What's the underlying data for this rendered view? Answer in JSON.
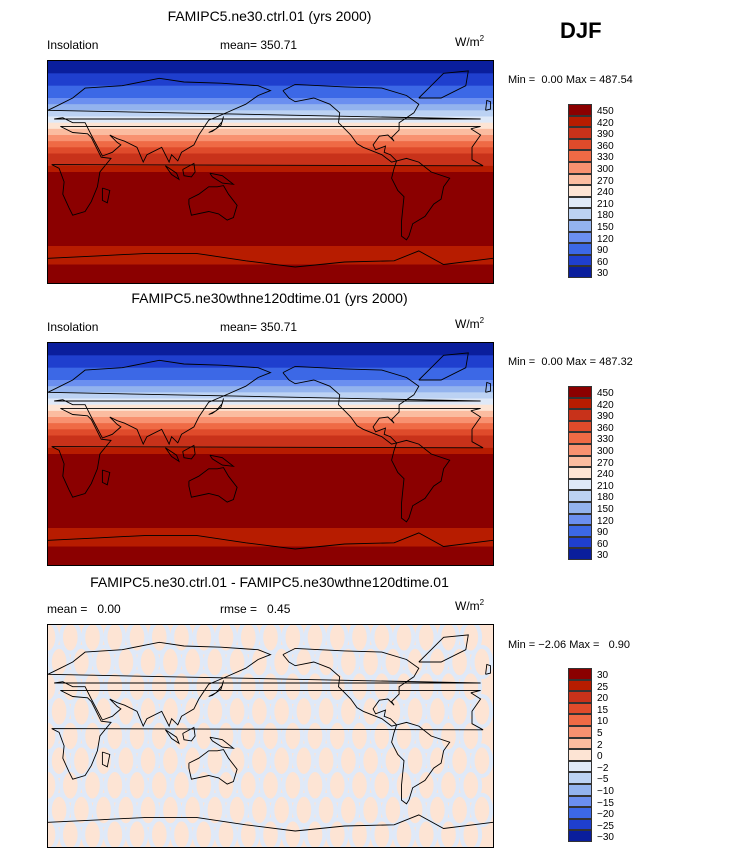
{
  "season": "DJF",
  "chart_data": [
    {
      "type": "heatmap",
      "title": "FAMIPC5.ne30.ctrl.01 (yrs 2000)",
      "variable": "Insolation",
      "mean_label": "mean=",
      "mean_value": "350.71",
      "units": "W/m",
      "units_exp": "2",
      "min_label": "Min =",
      "min_value": "0.00",
      "max_label": "Max =",
      "max_value": "487.54",
      "colorbar_levels": [
        "450",
        "420",
        "390",
        "360",
        "330",
        "300",
        "270",
        "240",
        "210",
        "180",
        "150",
        "120",
        "90",
        "60",
        "30"
      ],
      "colorbar_colors": [
        "#8b0000",
        "#b71c00",
        "#c8321a",
        "#df4b2b",
        "#ef6a45",
        "#f89170",
        "#fbbca0",
        "#fde4d4",
        "#dfe9f8",
        "#bcd2f3",
        "#93b3ee",
        "#6b8ff0",
        "#3c68e6",
        "#1f3fce",
        "#0a1e9c"
      ],
      "latitude_bands": [
        {
          "lat_range": [
            90,
            80
          ],
          "color": "#0a1e9c"
        },
        {
          "lat_range": [
            80,
            70
          ],
          "color": "#1f3fce"
        },
        {
          "lat_range": [
            70,
            60
          ],
          "color": "#3c68e6"
        },
        {
          "lat_range": [
            60,
            55
          ],
          "color": "#6b8ff0"
        },
        {
          "lat_range": [
            55,
            50
          ],
          "color": "#93b3ee"
        },
        {
          "lat_range": [
            50,
            45
          ],
          "color": "#bcd2f3"
        },
        {
          "lat_range": [
            45,
            40
          ],
          "color": "#dfe9f8"
        },
        {
          "lat_range": [
            40,
            35
          ],
          "color": "#fde4d4"
        },
        {
          "lat_range": [
            35,
            30
          ],
          "color": "#fbbca0"
        },
        {
          "lat_range": [
            30,
            25
          ],
          "color": "#f89170"
        },
        {
          "lat_range": [
            25,
            20
          ],
          "color": "#ef6a45"
        },
        {
          "lat_range": [
            20,
            15
          ],
          "color": "#df4b2b"
        },
        {
          "lat_range": [
            15,
            5
          ],
          "color": "#c8321a"
        },
        {
          "lat_range": [
            5,
            0
          ],
          "color": "#b71c00"
        },
        {
          "lat_range": [
            0,
            -60
          ],
          "color": "#8b0000"
        },
        {
          "lat_range": [
            -60,
            -75
          ],
          "color": "#b71c00"
        },
        {
          "lat_range": [
            -75,
            -90
          ],
          "color": "#8b0000"
        }
      ]
    },
    {
      "type": "heatmap",
      "title": "FAMIPC5.ne30wthne120dtime.01 (yrs 2000)",
      "variable": "Insolation",
      "mean_label": "mean=",
      "mean_value": "350.71",
      "units": "W/m",
      "units_exp": "2",
      "min_label": "Min =",
      "min_value": "0.00",
      "max_label": "Max =",
      "max_value": "487.32",
      "colorbar_levels": [
        "450",
        "420",
        "390",
        "360",
        "330",
        "300",
        "270",
        "240",
        "210",
        "180",
        "150",
        "120",
        "90",
        "60",
        "30"
      ],
      "colorbar_colors": [
        "#8b0000",
        "#b71c00",
        "#c8321a",
        "#df4b2b",
        "#ef6a45",
        "#f89170",
        "#fbbca0",
        "#fde4d4",
        "#dfe9f8",
        "#bcd2f3",
        "#93b3ee",
        "#6b8ff0",
        "#3c68e6",
        "#1f3fce",
        "#0a1e9c"
      ],
      "latitude_bands": [
        {
          "lat_range": [
            90,
            80
          ],
          "color": "#0a1e9c"
        },
        {
          "lat_range": [
            80,
            70
          ],
          "color": "#1f3fce"
        },
        {
          "lat_range": [
            70,
            60
          ],
          "color": "#3c68e6"
        },
        {
          "lat_range": [
            60,
            55
          ],
          "color": "#6b8ff0"
        },
        {
          "lat_range": [
            55,
            50
          ],
          "color": "#93b3ee"
        },
        {
          "lat_range": [
            50,
            45
          ],
          "color": "#bcd2f3"
        },
        {
          "lat_range": [
            45,
            40
          ],
          "color": "#dfe9f8"
        },
        {
          "lat_range": [
            40,
            35
          ],
          "color": "#fde4d4"
        },
        {
          "lat_range": [
            35,
            30
          ],
          "color": "#fbbca0"
        },
        {
          "lat_range": [
            30,
            25
          ],
          "color": "#f89170"
        },
        {
          "lat_range": [
            25,
            20
          ],
          "color": "#ef6a45"
        },
        {
          "lat_range": [
            20,
            15
          ],
          "color": "#df4b2b"
        },
        {
          "lat_range": [
            15,
            5
          ],
          "color": "#c8321a"
        },
        {
          "lat_range": [
            5,
            0
          ],
          "color": "#b71c00"
        },
        {
          "lat_range": [
            0,
            -60
          ],
          "color": "#8b0000"
        },
        {
          "lat_range": [
            -60,
            -75
          ],
          "color": "#b71c00"
        },
        {
          "lat_range": [
            -75,
            -90
          ],
          "color": "#8b0000"
        }
      ]
    },
    {
      "type": "heatmap",
      "title": "FAMIPC5.ne30.ctrl.01 - FAMIPC5.ne30wthne120dtime.01",
      "mean_label": "mean =",
      "mean_value": "0.00",
      "rmse_label": "rmse =",
      "rmse_value": "0.45",
      "units": "W/m",
      "units_exp": "2",
      "min_label": "Min =",
      "min_value": "−2.06",
      "max_label": "Max =",
      "max_value": "0.90",
      "colorbar_levels": [
        "30",
        "25",
        "20",
        "15",
        "10",
        "5",
        "2",
        "0",
        "−2",
        "−5",
        "−10",
        "−15",
        "−20",
        "−25",
        "−30"
      ],
      "colorbar_colors": [
        "#8b0000",
        "#b71c00",
        "#c8321a",
        "#df4b2b",
        "#ef6a45",
        "#f89170",
        "#fbbca0",
        "#fde4d4",
        "#dfe9f8",
        "#bcd2f3",
        "#93b3ee",
        "#6b8ff0",
        "#3c68e6",
        "#1f3fce",
        "#0a1e9c"
      ],
      "background_color": "#fde4d4",
      "pattern_color": "#dfe9f8"
    }
  ]
}
